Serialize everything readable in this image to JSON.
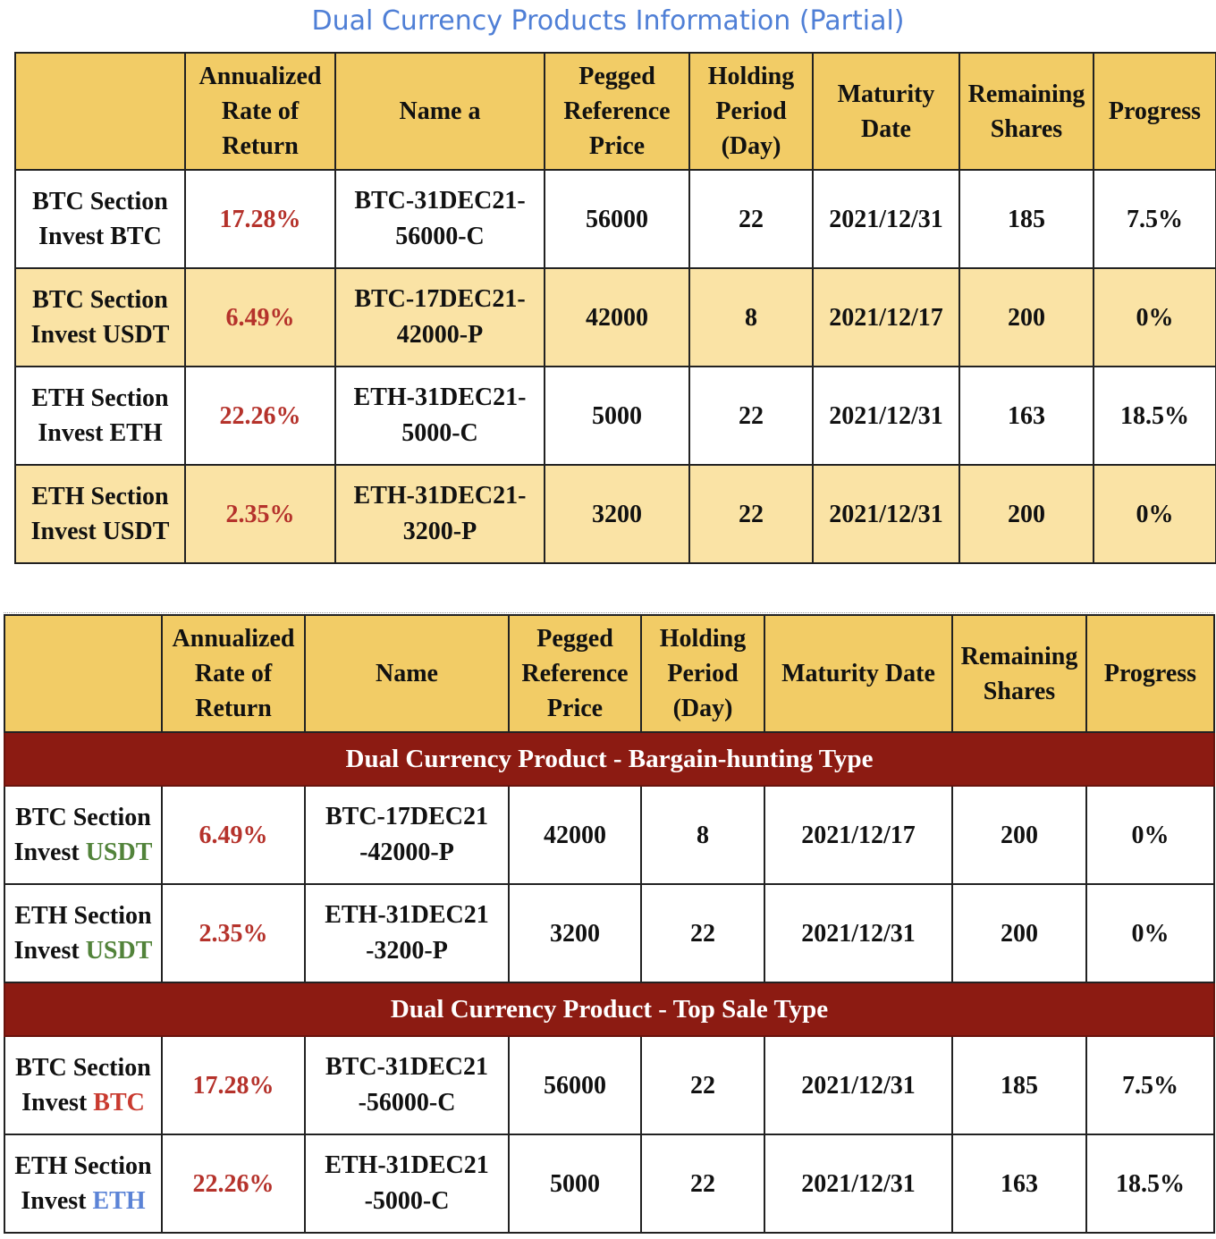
{
  "title": "Dual Currency Products Information (Partial)",
  "table1": {
    "headers": [
      "",
      "Annualized Rate of Return",
      "Name a",
      "Pegged Reference Price",
      "Holding Period (Day)",
      "Maturity Date",
      "Remaining Shares",
      "Progress"
    ],
    "rows": [
      {
        "section": "BTC Section",
        "invest": "Invest BTC",
        "rate": "17.28%",
        "name_1": "BTC-31DEC21-",
        "name_2": "56000-C",
        "price": "56000",
        "period": "22",
        "maturity": "2021/12/31",
        "shares": "185",
        "progress": "7.5%"
      },
      {
        "section": "BTC Section",
        "invest": "Invest USDT",
        "rate": "6.49%",
        "name_1": "BTC-17DEC21-",
        "name_2": "42000-P",
        "price": "42000",
        "period": "8",
        "maturity": "2021/12/17",
        "shares": "200",
        "progress": "0%"
      },
      {
        "section": "ETH Section",
        "invest": "Invest ETH",
        "rate": "22.26%",
        "name_1": "ETH-31DEC21-",
        "name_2": "5000-C",
        "price": "5000",
        "period": "22",
        "maturity": "2021/12/31",
        "shares": "163",
        "progress": "18.5%"
      },
      {
        "section": "ETH Section",
        "invest": "Invest USDT",
        "rate": "2.35%",
        "name_1": "ETH-31DEC21-",
        "name_2": "3200-P",
        "price": "3200",
        "period": "22",
        "maturity": "2021/12/31",
        "shares": "200",
        "progress": "0%"
      }
    ]
  },
  "table2": {
    "headers": [
      "",
      "Annualized Rate of Return",
      "Name",
      "Pegged Reference Price",
      "Holding Period (Day)",
      "Maturity Date",
      "Remaining Shares",
      "Progress"
    ],
    "groups": [
      {
        "title": "Dual Currency Product - Bargain-hunting Type",
        "rows": [
          {
            "section": "BTC Section",
            "invest_prefix": "Invest ",
            "invest_coin": "USDT",
            "rate": "6.49%",
            "name_1": "BTC-17DEC21",
            "name_2": "-42000-P",
            "price": "42000",
            "period": "8",
            "maturity": "2021/12/17",
            "shares": "200",
            "progress": "0%"
          },
          {
            "section": "ETH Section",
            "invest_prefix": "Invest ",
            "invest_coin": "USDT",
            "rate": "2.35%",
            "name_1": "ETH-31DEC21",
            "name_2": "-3200-P",
            "price": "3200",
            "period": "22",
            "maturity": "2021/12/31",
            "shares": "200",
            "progress": "0%"
          }
        ]
      },
      {
        "title": "Dual Currency Product - Top Sale Type",
        "rows": [
          {
            "section": "BTC Section",
            "invest_prefix": "Invest ",
            "invest_coin": "BTC",
            "rate": "17.28%",
            "name_1": "BTC-31DEC21",
            "name_2": "-56000-C",
            "price": "56000",
            "period": "22",
            "maturity": "2021/12/31",
            "shares": "185",
            "progress": "7.5%"
          },
          {
            "section": "ETH Section",
            "invest_prefix": "Invest ",
            "invest_coin": "ETH",
            "rate": "22.26%",
            "name_1": "ETH-31DEC21",
            "name_2": "-5000-C",
            "price": "5000",
            "period": "22",
            "maturity": "2021/12/31",
            "shares": "163",
            "progress": "18.5%"
          }
        ]
      }
    ]
  },
  "colors": {
    "header_bg": "#f2cc66",
    "row_light": "#fae3a5",
    "section_bar": "#8c1b12",
    "rate_red": "#b5322b",
    "usdt_green": "#52833a",
    "btc_red": "#c93a2f",
    "eth_blue": "#5b83d6",
    "title_blue": "#4f7fd6"
  }
}
